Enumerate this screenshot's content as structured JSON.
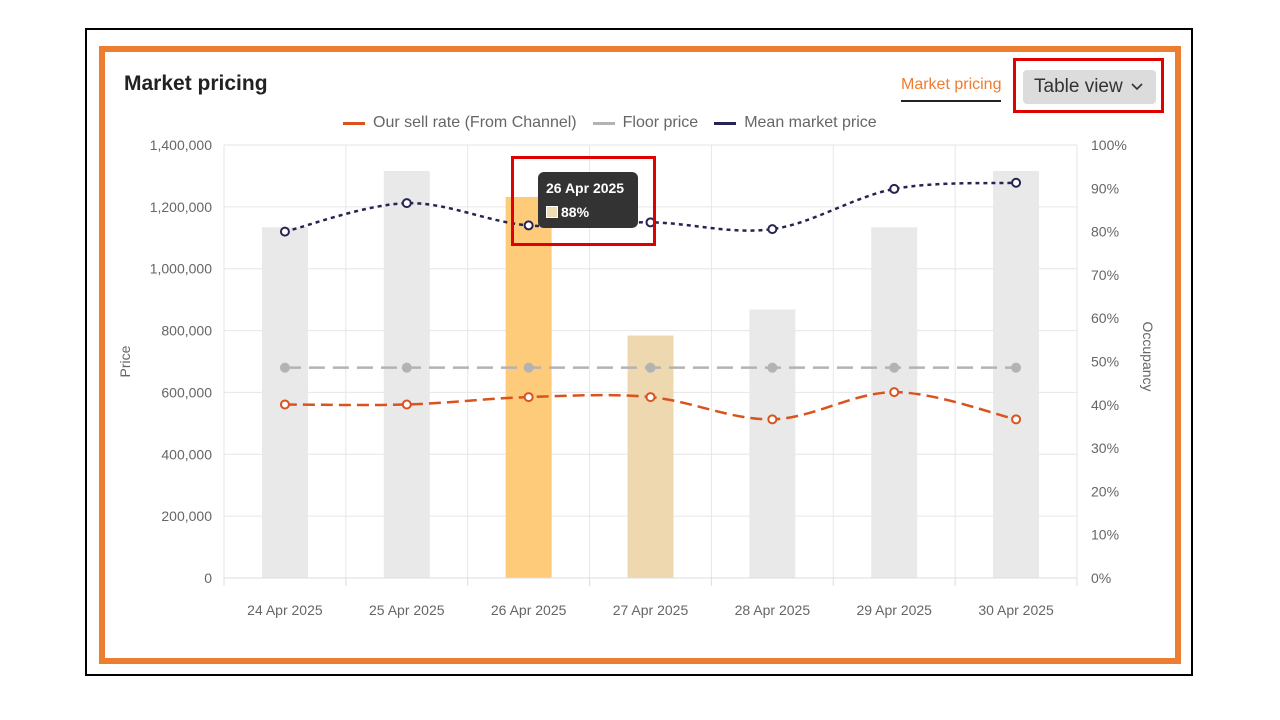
{
  "card": {
    "title": "Market pricing",
    "tab_label": "Market pricing",
    "view_button_label": "Table view"
  },
  "icons": {
    "view_dropdown": "chevron-down-icon"
  },
  "colors": {
    "highlight_border": "#ed7d31",
    "annotation": "#e00000",
    "sell_rate": "#d9531e",
    "floor_price": "#b3b3b3",
    "mean_market": "#262452",
    "occupancy_bar": "#e9e9e9",
    "occupancy_bar_selected": "#fdcb7a",
    "occupancy_bar_hover": "#eed8b0"
  },
  "tooltip": {
    "title": "26 Apr 2025",
    "value": "88%"
  },
  "chart_data": {
    "type": "bar",
    "categories": [
      "24 Apr 2025",
      "25 Apr 2025",
      "26 Apr 2025",
      "27 Apr 2025",
      "28 Apr 2025",
      "29 Apr 2025",
      "30 Apr 2025"
    ],
    "ylabel": "Price",
    "ylabel_right": "Occupancy",
    "ylim": [
      0,
      1400000
    ],
    "ylim_right": [
      0,
      100
    ],
    "y_ticks": [
      "0",
      "200,000",
      "400,000",
      "600,000",
      "800,000",
      "1,000,000",
      "1,200,000",
      "1,400,000"
    ],
    "y_right_ticks": [
      "0%",
      "10%",
      "20%",
      "30%",
      "40%",
      "50%",
      "60%",
      "70%",
      "80%",
      "90%",
      "100%"
    ],
    "grid": true,
    "legend_position": "top-center",
    "bars": {
      "name": "Occupancy",
      "axis": "right",
      "values": [
        81,
        94,
        88,
        56,
        62,
        81,
        94
      ],
      "selected_index": 2,
      "hover_index": 3
    },
    "series": [
      {
        "name": "Our sell rate (From Channel)",
        "type": "line",
        "style": "dashed",
        "axis": "left",
        "values": [
          561000,
          561000,
          585000,
          585000,
          513000,
          601000,
          513000
        ]
      },
      {
        "name": "Floor price",
        "type": "line",
        "style": "dashed",
        "axis": "left",
        "values": [
          680000,
          680000,
          680000,
          680000,
          680000,
          680000,
          680000
        ]
      },
      {
        "name": "Mean market price",
        "type": "line",
        "style": "dotted",
        "axis": "left",
        "values": [
          1120000,
          1212000,
          1140000,
          1150000,
          1128000,
          1258000,
          1278000
        ]
      }
    ]
  }
}
